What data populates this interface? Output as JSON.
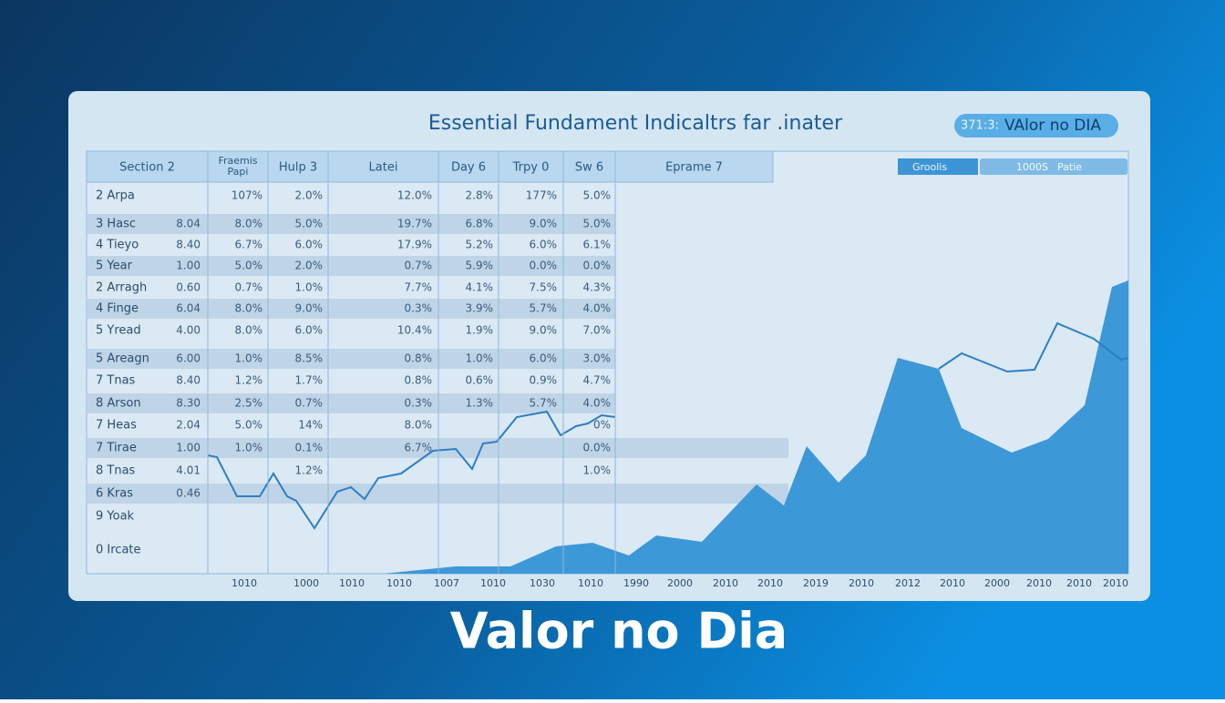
{
  "header": {
    "title": "Essential Fundament Indicaltrs far .inater",
    "badge_code": "371:3:",
    "badge_text": "VAlor no DIA"
  },
  "table": {
    "headers": [
      "Section 2",
      "Fraemis Papi",
      "Hulp 3",
      "Latei",
      "Day 6",
      "Trpy 0",
      "Sw 6",
      "Eprame 7"
    ],
    "toolbar": [
      "Groolis",
      "1000S",
      "Patie"
    ],
    "rows": [
      [
        "2 Arpa",
        null,
        "107%",
        "2.0%",
        "12.0%",
        "2.8%",
        "177%",
        "5.0%"
      ],
      [
        "3 Hasc",
        "8.04",
        "8.0%",
        "5.0%",
        "19.7%",
        "6.8%",
        "9.0%",
        "5.0%"
      ],
      [
        "4 Tieyo",
        "8.40",
        "6.7%",
        "6.0%",
        "17.9%",
        "5.2%",
        "6.0%",
        "6.1%"
      ],
      [
        "5 Year",
        "1.00",
        "5.0%",
        "2.0%",
        "0.7%",
        "5.9%",
        "0.0%",
        "0.0%"
      ],
      [
        "2 Arragh",
        "0.60",
        "0.7%",
        "1.0%",
        "7.7%",
        "4.1%",
        "7.5%",
        "4.3%"
      ],
      [
        "4 Finge",
        "6.04",
        "8.0%",
        "9.0%",
        "0.3%",
        "3.9%",
        "5.7%",
        "4.0%"
      ],
      [
        "5 Yread",
        "4.00",
        "8.0%",
        "6.0%",
        "10.4%",
        "1.9%",
        "9.0%",
        "7.0%"
      ],
      [
        "5 Areagn",
        "6.00",
        "1.0%",
        "8.5%",
        "0.8%",
        "1.0%",
        "6.0%",
        "3.0%"
      ],
      [
        "7 Tnas",
        "8.40",
        "1.2%",
        "1.7%",
        "0.8%",
        "0.6%",
        "0.9%",
        "4.7%"
      ],
      [
        "8 Arson",
        "8.30",
        "2.5%",
        "0.7%",
        "0.3%",
        "1.3%",
        "5.7%",
        "4.0%"
      ],
      [
        "7 Heas",
        "2.04",
        "5.0%",
        "14%",
        "8.0%",
        null,
        null,
        "0%"
      ],
      [
        "7 Tirae",
        "1.00",
        "1.0%",
        "0.1%",
        "6.7%",
        null,
        null,
        "0.0%"
      ],
      [
        "8 Tnas",
        "4.01",
        null,
        "1.2%",
        null,
        null,
        null,
        "1.0%"
      ],
      [
        "6 Kras",
        "0.46",
        null,
        null,
        null,
        null,
        null,
        null
      ],
      [
        "9 Yoak",
        null,
        null,
        null,
        null,
        null,
        null,
        null
      ],
      [
        "0 Ircate",
        null,
        null,
        null,
        null,
        null,
        null,
        null
      ]
    ]
  },
  "axis_labels": [
    "1010",
    "1000",
    "1010",
    "1010",
    "1007",
    "1010",
    "1030",
    "1010",
    "1990",
    "2000",
    "2010",
    "2010",
    "2019",
    "2010",
    "2012",
    "2010",
    "2000",
    "2010",
    "2010",
    "2010"
  ],
  "caption": "Valor no Dia"
}
